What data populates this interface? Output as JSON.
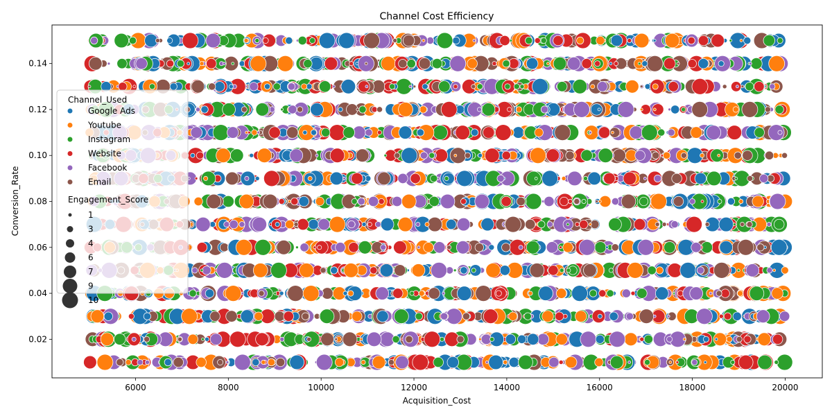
{
  "chart_data": {
    "type": "scatter",
    "title": "Channel Cost Efficiency",
    "xlabel": "Acquisition_Cost",
    "ylabel": "Conversion_Rate",
    "xlim": [
      4200,
      20800
    ],
    "ylim": [
      0.0032,
      0.1568
    ],
    "xticks": [
      6000,
      8000,
      10000,
      12000,
      14000,
      16000,
      18000,
      20000
    ],
    "xtick_labels": [
      "6000",
      "8000",
      "10000",
      "12000",
      "14000",
      "16000",
      "18000",
      "20000"
    ],
    "yticks": [
      0.02,
      0.04,
      0.06,
      0.08,
      0.1,
      0.12,
      0.14
    ],
    "ytick_labels": [
      "0.02",
      "0.04",
      "0.06",
      "0.08",
      "0.10",
      "0.12",
      "0.14"
    ],
    "conversion_rate_levels": [
      0.01,
      0.02,
      0.03,
      0.04,
      0.05,
      0.06,
      0.07,
      0.08,
      0.09,
      0.1,
      0.11,
      0.12,
      0.13,
      0.14,
      0.15
    ],
    "acquisition_cost_range": [
      5000,
      20000
    ],
    "engagement_score_range": [
      1,
      10
    ],
    "grid": false,
    "legend_placement": "center-left",
    "legend": {
      "hue_title": "Channel_Used",
      "size_title": "Engagement_Score",
      "size_entries": [
        "1",
        "3",
        "4",
        "6",
        "7",
        "9",
        "10"
      ]
    },
    "series": [
      {
        "name": "Google Ads",
        "color": "#1f77b4"
      },
      {
        "name": "Youtube",
        "color": "#ff7f0e"
      },
      {
        "name": "Instagram",
        "color": "#2ca02c"
      },
      {
        "name": "Website",
        "color": "#d62728"
      },
      {
        "name": "Facebook",
        "color": "#9467bd"
      },
      {
        "name": "Email",
        "color": "#8c564b"
      }
    ]
  }
}
